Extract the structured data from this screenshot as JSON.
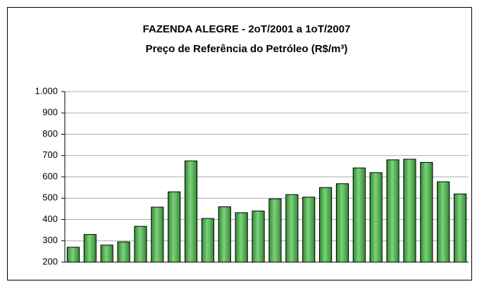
{
  "chart_data": {
    "type": "bar",
    "title": [
      "FAZENDA ALEGRE - 2oT/2001 a 1oT/2007",
      "Preço de Referência do Petróleo (R$/m³)"
    ],
    "categories": [
      null,
      null,
      null,
      null,
      null,
      null,
      null,
      null,
      null,
      null,
      null,
      null,
      null,
      null,
      null,
      null,
      null,
      null,
      null,
      null,
      null,
      null,
      null,
      null
    ],
    "values": [
      270,
      330,
      280,
      295,
      368,
      458,
      530,
      675,
      405,
      460,
      432,
      440,
      497,
      517,
      505,
      550,
      568,
      642,
      620,
      680,
      683,
      668,
      577,
      520
    ],
    "color": "#2e8b2e",
    "ylim": [
      200,
      1000
    ],
    "yticks": [
      200,
      300,
      400,
      500,
      600,
      700,
      800,
      900,
      {
        "value": 1000,
        "label": "1.000"
      }
    ],
    "grid": true
  }
}
